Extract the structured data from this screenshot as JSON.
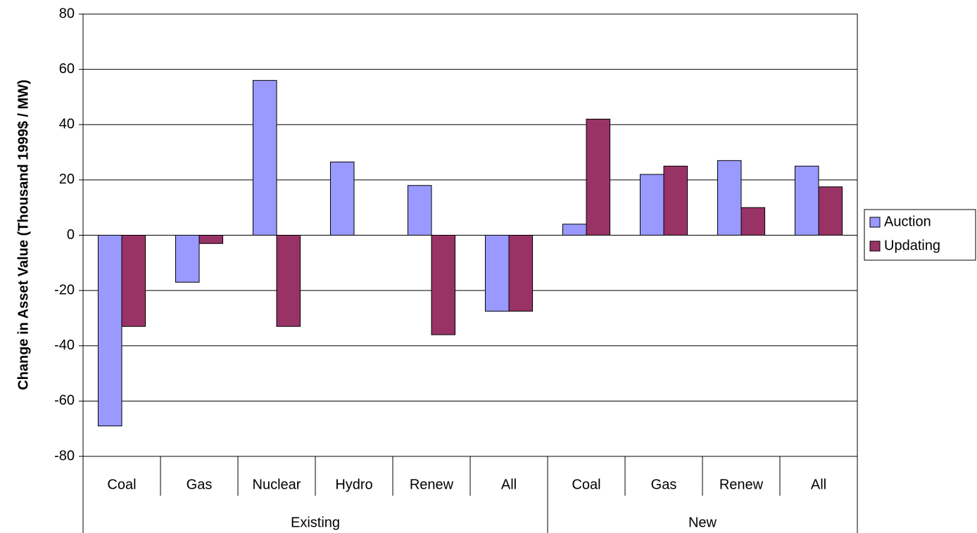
{
  "chart_data": {
    "type": "bar",
    "y_label": "Change in Asset Value (Thousand 1999$ / MW)",
    "groups": [
      {
        "label": "Existing",
        "categories": [
          "Coal",
          "Gas",
          "Nuclear",
          "Hydro",
          "Renew",
          "All"
        ]
      },
      {
        "label": "New",
        "categories": [
          "Coal",
          "Gas",
          "Renew",
          "All"
        ]
      }
    ],
    "series": [
      {
        "name": "Auction",
        "color": "#9999ff",
        "values": [
          -69,
          -17,
          56,
          26.5,
          18,
          -27.5,
          4,
          22,
          27,
          25
        ]
      },
      {
        "name": "Updating",
        "color": "#993366",
        "values": [
          -33,
          -3,
          -33,
          null,
          -36,
          -27.5,
          42,
          25,
          10,
          17.5
        ]
      }
    ],
    "ylim": [
      -80,
      80
    ],
    "yticks": [
      -80,
      -60,
      -40,
      -20,
      0,
      20,
      40,
      60,
      80
    ],
    "grid": true,
    "legend": "right"
  }
}
